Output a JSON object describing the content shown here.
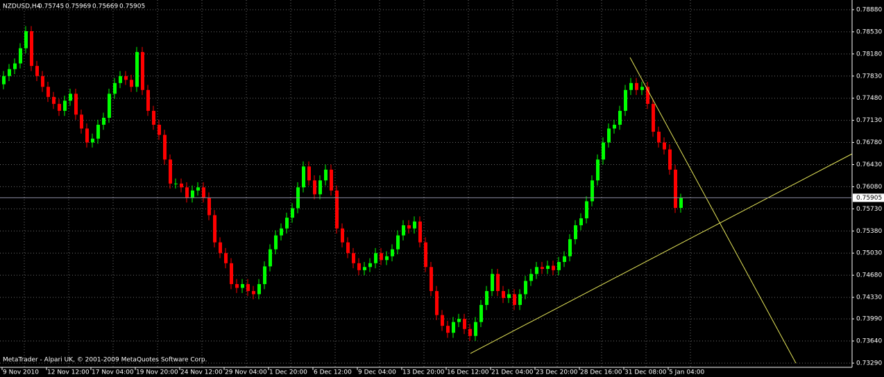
{
  "chart_data": {
    "type": "candlestick",
    "symbol": "NZDUSD,H4",
    "footer": "MetaTrader - Alpari UK, © 2001-2009 MetaQuotes Software Corp.",
    "up_color": "#00ff00",
    "down_color": "#ff0000",
    "grid": true,
    "ylim": [
      0.73224,
      0.79033
    ],
    "yticks": [
      {
        "value": 0.7888,
        "label": "0.78880"
      },
      {
        "value": 0.7853,
        "label": "0.78530"
      },
      {
        "value": 0.7818,
        "label": "0.78180"
      },
      {
        "value": 0.7783,
        "label": "0.77830"
      },
      {
        "value": 0.7748,
        "label": "0.77480"
      },
      {
        "value": 0.7713,
        "label": "0.77130"
      },
      {
        "value": 0.7678,
        "label": "0.76780"
      },
      {
        "value": 0.7643,
        "label": "0.76430"
      },
      {
        "value": 0.7608,
        "label": "0.76080"
      },
      {
        "value": 0.7573,
        "label": "0.75730"
      },
      {
        "value": 0.7538,
        "label": "0.75380"
      },
      {
        "value": 0.7503,
        "label": "0.75030"
      },
      {
        "value": 0.7468,
        "label": "0.74680"
      },
      {
        "value": 0.7433,
        "label": "0.74330"
      },
      {
        "value": 0.7399,
        "label": "0.73990"
      },
      {
        "value": 0.7364,
        "label": "0.73640"
      },
      {
        "value": 0.7329,
        "label": "0.73290"
      }
    ],
    "categories": [
      "9 Nov 2010",
      null,
      null,
      null,
      null,
      null,
      null,
      null,
      "12 Nov 12:00",
      null,
      null,
      null,
      null,
      null,
      null,
      null,
      "17 Nov 04:00",
      null,
      null,
      null,
      null,
      null,
      null,
      null,
      "19 Nov 20:00",
      null,
      null,
      null,
      null,
      null,
      null,
      null,
      "24 Nov 12:00",
      null,
      null,
      null,
      null,
      null,
      null,
      null,
      "29 Nov 04:00",
      null,
      null,
      null,
      null,
      null,
      null,
      null,
      "1 Dec 20:00",
      null,
      null,
      null,
      null,
      null,
      null,
      null,
      "6 Dec 12:00",
      null,
      null,
      null,
      null,
      null,
      null,
      null,
      "9 Dec 04:00",
      null,
      null,
      null,
      null,
      null,
      null,
      null,
      "13 Dec 20:00",
      null,
      null,
      null,
      null,
      null,
      null,
      null,
      "16 Dec 12:00",
      null,
      null,
      null,
      null,
      null,
      null,
      null,
      "21 Dec 04:00",
      null,
      null,
      null,
      null,
      null,
      null,
      null,
      "23 Dec 20:00",
      null,
      null,
      null,
      null,
      null,
      null,
      null,
      "28 Dec 16:00",
      null,
      null,
      null,
      null,
      null,
      null,
      null,
      "31 Dec 08:00",
      null,
      null,
      null,
      null,
      null,
      null,
      null,
      "5 Jan 04:00",
      null,
      null
    ],
    "open": [
      0.777,
      0.7783,
      0.7794,
      0.7803,
      0.7827,
      0.7854,
      0.7799,
      0.7783,
      0.7766,
      0.775,
      0.7739,
      0.7728,
      0.7744,
      0.7755,
      0.7722,
      0.77,
      0.7678,
      0.7684,
      0.7706,
      0.7717,
      0.7755,
      0.7772,
      0.7783,
      0.7777,
      0.7766,
      0.7821,
      0.7761,
      0.7728,
      0.7706,
      0.769,
      0.7651,
      0.7613,
      0.7613,
      0.7607,
      0.7591,
      0.7602,
      0.7607,
      0.7591,
      0.7563,
      0.752,
      0.7503,
      0.7487,
      0.7454,
      0.7448,
      0.7454,
      0.7443,
      0.7438,
      0.7454,
      0.7482,
      0.7509,
      0.7531,
      0.7542,
      0.7559,
      0.7574,
      0.7607,
      0.764,
      0.7618,
      0.7596,
      0.7618,
      0.7635,
      0.7602,
      0.7542,
      0.752,
      0.7503,
      0.7487,
      0.7476,
      0.7481,
      0.7487,
      0.7503,
      0.7492,
      0.7498,
      0.7509,
      0.7531,
      0.7547,
      0.7542,
      0.7553,
      0.752,
      0.7481,
      0.7443,
      0.7405,
      0.7388,
      0.7377,
      0.7394,
      0.7399,
      0.7383,
      0.7372,
      0.7394,
      0.7421,
      0.7443,
      0.747,
      0.7443,
      0.7432,
      0.7438,
      0.7421,
      0.7438,
      0.7459,
      0.747,
      0.7481,
      0.7478,
      0.7483,
      0.7476,
      0.7489,
      0.7498,
      0.7525,
      0.7547,
      0.7558,
      0.7585,
      0.7618,
      0.7651,
      0.7678,
      0.77,
      0.7706,
      0.7728,
      0.7761,
      0.7772,
      0.7761,
      0.7766,
      0.7739,
      0.7695,
      0.7678,
      0.7667,
      0.7635,
      0.75745
    ],
    "high": [
      0.7791,
      0.7802,
      0.7811,
      0.7835,
      0.7862,
      0.7862,
      0.7807,
      0.7791,
      0.7774,
      0.7758,
      0.7747,
      0.7752,
      0.7763,
      0.7763,
      0.773,
      0.7708,
      0.7692,
      0.7714,
      0.7725,
      0.7763,
      0.778,
      0.7791,
      0.7791,
      0.7785,
      0.7829,
      0.7829,
      0.7769,
      0.7736,
      0.7714,
      0.7698,
      0.7659,
      0.7621,
      0.7621,
      0.7615,
      0.761,
      0.7615,
      0.7615,
      0.7599,
      0.7571,
      0.7528,
      0.7511,
      0.7495,
      0.7462,
      0.7462,
      0.7462,
      0.7451,
      0.7462,
      0.749,
      0.7517,
      0.7539,
      0.755,
      0.7567,
      0.7582,
      0.7615,
      0.7648,
      0.7648,
      0.7626,
      0.7626,
      0.7643,
      0.7643,
      0.761,
      0.755,
      0.7528,
      0.7511,
      0.7495,
      0.7489,
      0.7495,
      0.7511,
      0.7511,
      0.7506,
      0.7517,
      0.7539,
      0.7555,
      0.7555,
      0.7561,
      0.7561,
      0.7528,
      0.7489,
      0.7451,
      0.7413,
      0.7396,
      0.7402,
      0.7407,
      0.7407,
      0.7391,
      0.7402,
      0.7429,
      0.7451,
      0.7478,
      0.7478,
      0.7451,
      0.7446,
      0.7446,
      0.7446,
      0.7467,
      0.7478,
      0.7489,
      0.7489,
      0.7491,
      0.7491,
      0.7497,
      0.7506,
      0.7533,
      0.7555,
      0.7566,
      0.7593,
      0.7626,
      0.7659,
      0.7686,
      0.7708,
      0.7714,
      0.7736,
      0.7769,
      0.778,
      0.778,
      0.7774,
      0.7774,
      0.7747,
      0.7703,
      0.7686,
      0.7675,
      0.7643,
      0.75969
    ],
    "low": [
      0.7762,
      0.7775,
      0.7786,
      0.7795,
      0.7819,
      0.7791,
      0.7775,
      0.7758,
      0.7742,
      0.7731,
      0.772,
      0.772,
      0.7736,
      0.7714,
      0.7692,
      0.767,
      0.767,
      0.7676,
      0.7698,
      0.7709,
      0.7747,
      0.7764,
      0.7769,
      0.7758,
      0.7758,
      0.7753,
      0.772,
      0.7698,
      0.7682,
      0.7643,
      0.7605,
      0.7605,
      0.7599,
      0.7583,
      0.7583,
      0.7594,
      0.7583,
      0.7555,
      0.7512,
      0.7495,
      0.7479,
      0.7446,
      0.744,
      0.744,
      0.7435,
      0.743,
      0.743,
      0.7446,
      0.7474,
      0.7501,
      0.7523,
      0.7534,
      0.7551,
      0.7566,
      0.7599,
      0.761,
      0.7588,
      0.7588,
      0.761,
      0.7594,
      0.7534,
      0.7512,
      0.7495,
      0.7479,
      0.7468,
      0.7468,
      0.7473,
      0.7479,
      0.7484,
      0.7484,
      0.749,
      0.7501,
      0.7523,
      0.7534,
      0.7534,
      0.7512,
      0.7473,
      0.7435,
      0.7397,
      0.738,
      0.7369,
      0.7369,
      0.7386,
      0.7375,
      0.7364,
      0.7364,
      0.7386,
      0.7413,
      0.7435,
      0.7435,
      0.7424,
      0.7424,
      0.7413,
      0.7413,
      0.743,
      0.7451,
      0.7462,
      0.747,
      0.747,
      0.7468,
      0.7468,
      0.7481,
      0.749,
      0.7517,
      0.7539,
      0.755,
      0.7577,
      0.761,
      0.7643,
      0.767,
      0.7692,
      0.7698,
      0.772,
      0.7753,
      0.7753,
      0.7753,
      0.7731,
      0.7687,
      0.767,
      0.7659,
      0.7627,
      0.75665,
      0.75669
    ],
    "close": [
      0.7783,
      0.7794,
      0.7803,
      0.7827,
      0.7854,
      0.7799,
      0.7783,
      0.7766,
      0.775,
      0.7739,
      0.7728,
      0.7744,
      0.7755,
      0.7722,
      0.77,
      0.7678,
      0.7684,
      0.7706,
      0.7717,
      0.7755,
      0.7772,
      0.7783,
      0.7777,
      0.7766,
      0.7821,
      0.7761,
      0.7728,
      0.7706,
      0.769,
      0.7651,
      0.7613,
      0.7613,
      0.7607,
      0.7591,
      0.7602,
      0.7607,
      0.7591,
      0.7563,
      0.752,
      0.7503,
      0.7487,
      0.7454,
      0.7448,
      0.7454,
      0.7443,
      0.7438,
      0.7454,
      0.7482,
      0.7509,
      0.7531,
      0.7542,
      0.7559,
      0.7574,
      0.7607,
      0.764,
      0.7618,
      0.7596,
      0.7618,
      0.7635,
      0.7602,
      0.7542,
      0.752,
      0.7503,
      0.7487,
      0.7476,
      0.7481,
      0.7487,
      0.7503,
      0.7492,
      0.7498,
      0.7509,
      0.7531,
      0.7547,
      0.7542,
      0.7553,
      0.752,
      0.7481,
      0.7443,
      0.7405,
      0.7388,
      0.7377,
      0.7394,
      0.7399,
      0.7383,
      0.7372,
      0.7394,
      0.7421,
      0.7443,
      0.747,
      0.7443,
      0.7432,
      0.7438,
      0.7421,
      0.7438,
      0.7459,
      0.747,
      0.7481,
      0.7478,
      0.7483,
      0.7476,
      0.7489,
      0.7498,
      0.7525,
      0.7547,
      0.7558,
      0.7585,
      0.7618,
      0.7651,
      0.7678,
      0.77,
      0.7706,
      0.7728,
      0.7761,
      0.7772,
      0.7761,
      0.7766,
      0.7739,
      0.7695,
      0.7678,
      0.7667,
      0.7635,
      0.75745,
      0.75905
    ]
  }
}
